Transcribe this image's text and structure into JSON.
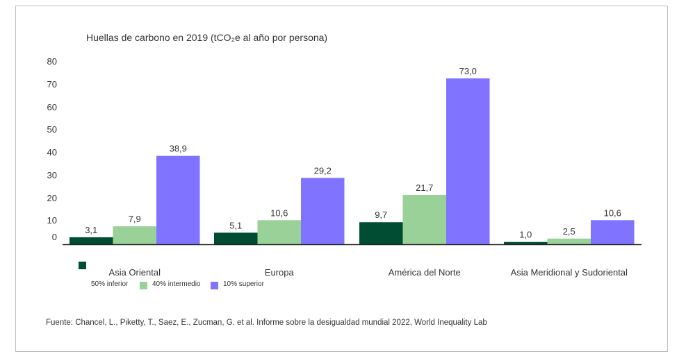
{
  "chart_data": {
    "type": "bar",
    "title": "Huellas de carbono en 2019 (tCO₂e al año por persona)",
    "xlabel": "",
    "ylabel": "",
    "ylim": [
      0,
      80
    ],
    "yticks": [
      "0",
      "10",
      "20",
      "30",
      "40",
      "50",
      "60",
      "70",
      "80"
    ],
    "grid": false,
    "categories": [
      "Asia Oriental",
      "Europa",
      "América del Norte",
      "Asia Meridional y Sudoriental"
    ],
    "series": [
      {
        "name": "50% inferior",
        "color": "#004d33",
        "values": [
          3.1,
          5.1,
          9.7,
          1.0
        ],
        "labels": [
          "3,1",
          "5,1",
          "9,7",
          "1,0"
        ]
      },
      {
        "name": "40% intermedio",
        "color": "#99d199",
        "values": [
          7.9,
          10.6,
          21.7,
          2.5
        ],
        "labels": [
          "7,9",
          "10,6",
          "21,7",
          "2,5"
        ]
      },
      {
        "name": "10% superior",
        "color": "#8073ff",
        "values": [
          38.9,
          29.2,
          73.0,
          10.6
        ],
        "labels": [
          "38,9",
          "29,2",
          "73,0",
          "10,6"
        ]
      }
    ],
    "legend_position": "bottom-left",
    "source": "Fuente: Chancel, L., Piketty, T., Saez, E., Zucman, G. et al. Informe sobre la desigualdad mundial 2022, World Inequality Lab"
  }
}
